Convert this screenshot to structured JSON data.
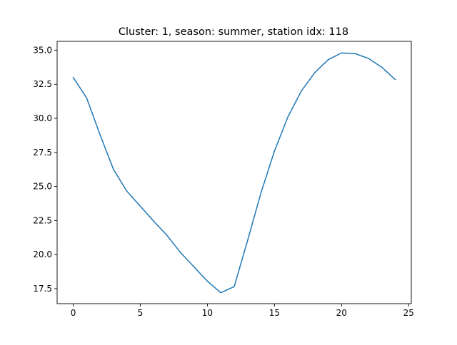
{
  "chart_data": {
    "type": "line",
    "title": "Cluster: 1, season: summer, station idx: 118",
    "xlabel": "",
    "ylabel": "",
    "xlim": [
      -1.2,
      25.2
    ],
    "ylim": [
      16.4,
      35.65
    ],
    "x_ticks": [
      0,
      5,
      10,
      15,
      20,
      25
    ],
    "y_ticks": [
      17.5,
      20.0,
      22.5,
      25.0,
      27.5,
      30.0,
      32.5,
      35.0
    ],
    "x_tick_labels": [
      "0",
      "5",
      "10",
      "15",
      "20",
      "25"
    ],
    "y_tick_labels": [
      "17.5",
      "20.0",
      "22.5",
      "25.0",
      "27.5",
      "30.0",
      "32.5",
      "35.0"
    ],
    "grid": false,
    "legend": "none",
    "series": [
      {
        "color": "#1f77b4",
        "x": [
          0,
          1,
          2,
          3,
          4,
          5,
          6,
          7,
          8,
          9,
          10,
          11,
          12,
          13,
          14,
          15,
          16,
          17,
          18,
          19,
          20,
          21,
          22,
          23,
          24
        ],
        "y": [
          33.0,
          31.5,
          28.8,
          26.25,
          24.65,
          23.55,
          22.45,
          21.4,
          20.15,
          19.1,
          18.05,
          17.2,
          17.65,
          21.05,
          24.55,
          27.6,
          30.1,
          32.0,
          33.35,
          34.3,
          34.8,
          34.75,
          34.4,
          33.75,
          32.85
        ]
      }
    ]
  }
}
